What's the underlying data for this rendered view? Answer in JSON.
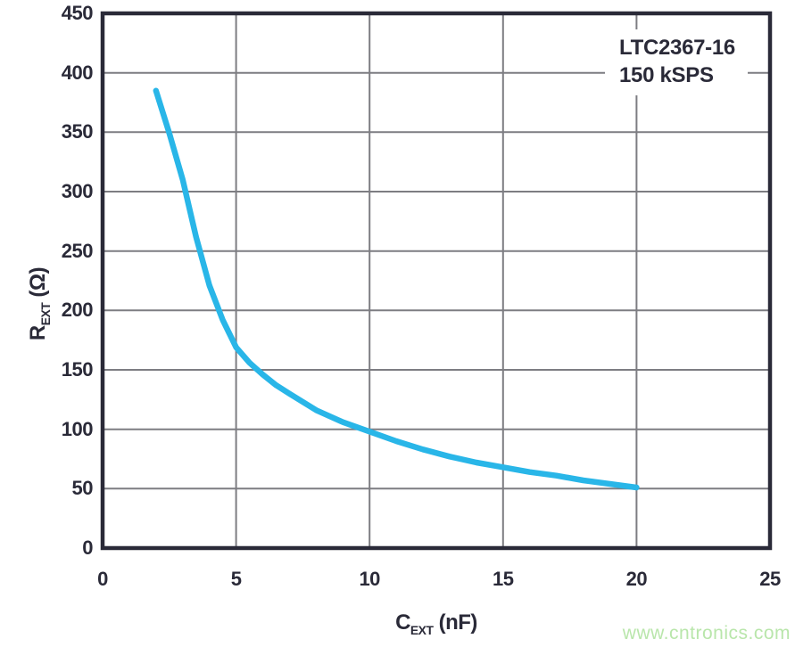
{
  "colors": {
    "curve": "#29b6e8",
    "axis": "#2a2a38",
    "grid": "#7d7d82",
    "text": "#2a2a38",
    "watermark": "#b9e6ab",
    "bg": "#ffffff"
  },
  "annotation": {
    "line1": "LTC2367-16",
    "line2": "150 kSPS"
  },
  "axis_titles": {
    "y_base": "R",
    "y_sub": "EXT",
    "y_unit": " (Ω)",
    "x_base": "C",
    "x_sub": "EXT",
    "x_unit": " (nF)"
  },
  "watermark": "www.cntronics.com",
  "chart_data": {
    "type": "line",
    "title": "",
    "xlabel": "CEXT (nF)",
    "ylabel": "REXT (Ω)",
    "xlim": [
      0,
      25
    ],
    "ylim": [
      0,
      450
    ],
    "grid": true,
    "legend": "none",
    "annotation": [
      "LTC2367-16",
      "150 kSPS"
    ],
    "xticks": [
      0,
      5,
      10,
      15,
      20,
      25
    ],
    "yticks": [
      0,
      50,
      100,
      150,
      200,
      250,
      300,
      350,
      400,
      450
    ],
    "xtick_labels": [
      "0",
      "5",
      "10",
      "15",
      "20",
      "25"
    ],
    "ytick_labels": [
      "450",
      "400",
      "350",
      "300",
      "250",
      "200",
      "150",
      "100",
      "50",
      "0"
    ],
    "series": [
      {
        "name": "REXT vs CEXT",
        "color": "#29b6e8",
        "x": [
          2,
          2.5,
          3,
          3.5,
          4,
          4.5,
          5,
          5.5,
          6,
          6.5,
          7,
          7.5,
          8,
          9,
          10,
          11,
          12,
          13,
          14,
          15,
          16,
          17,
          18,
          19,
          20
        ],
        "y": [
          385,
          349,
          310,
          262,
          221,
          192,
          169,
          156,
          146,
          137,
          130,
          123,
          116,
          106,
          98,
          90,
          83,
          77,
          72,
          68,
          64,
          61,
          57,
          54,
          51
        ]
      }
    ]
  }
}
